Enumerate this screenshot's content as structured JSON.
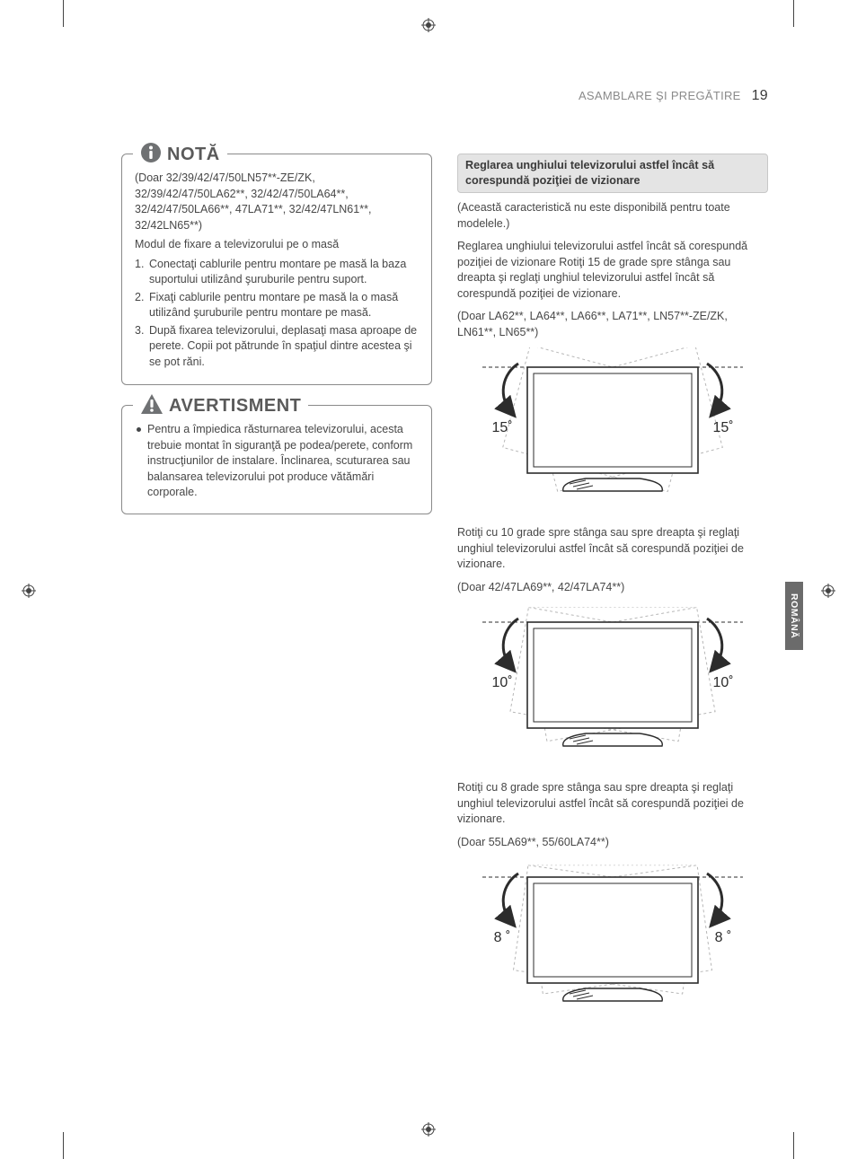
{
  "header": {
    "section": "ASAMBLARE ŞI PREGĂTIRE",
    "page": "19"
  },
  "sideTab": "ROMÂNĂ",
  "note": {
    "title": "NOTĂ",
    "models": "(Doar 32/39/42/47/50LN57**-ZE/ZK, 32/39/42/47/50LA62**, 32/42/47/50LA64**, 32/42/47/50LA66**, 47LA71**, 32/42/47LN61**, 32/42LN65**)",
    "intro": "Modul de fixare a televizorului pe o masă",
    "steps": [
      "Conectaţi cablurile pentru montare pe masă la baza suportului utilizând şuruburile pentru suport.",
      "Fixaţi cablurile pentru montare pe masă la o masă utilizând şuruburile pentru montare pe masă.",
      "După fixarea televizorului, deplasaţi masa aproape de perete. Copii pot pătrunde în spaţiul dintre acestea şi se pot răni."
    ]
  },
  "warning": {
    "title": "AVERTISMENT",
    "bullet": "Pentru a împiedica răsturnarea televizorului, acesta trebuie montat în siguranţă pe podea/perete, conform instrucţiunilor de instalare. Înclinarea, scuturarea sau balansarea televizorului pot produce vătămări corporale."
  },
  "swivel": {
    "title": "Reglarea unghiului televizorului astfel încât să corespundă poziţiei de vizionare",
    "disclaimer": "(Această caracteristică nu este disponibilă pentru toate modelele.)",
    "para15": "Reglarea unghiului televizorului astfel încât să corespundă poziţiei de vizionare Rotiţi 15 de grade spre stânga sau dreapta şi reglaţi unghiul televizorului astfel încât să corespundă poziţiei de vizionare.",
    "models15": "(Doar LA62**, LA64**, LA66**, LA71**, LN57**-ZE/ZK, LN61**, LN65**)",
    "para10": "Rotiţi cu 10 grade spre stânga sau spre dreapta şi reglaţi unghiul televizorului astfel încât să corespundă poziţiei de vizionare.",
    "models10": "(Doar 42/47LA69**, 42/47LA74**)",
    "para8": "Rotiţi cu 8 grade spre stânga sau spre dreapta şi reglaţi unghiul televizorului astfel încât să corespundă poziţiei de vizionare.",
    "models8": "(Doar 55LA69**, 55/60LA74**)"
  },
  "diagrams": {
    "d15": {
      "left": "15˚",
      "right": "15˚",
      "angle": 15
    },
    "d10": {
      "left": "10˚",
      "right": "10˚",
      "angle": 10
    },
    "d8": {
      "left": "8 ˚",
      "right": "8 ˚",
      "angle": 8
    }
  },
  "colors": {
    "text": "#474747",
    "muted": "#8a8a8a",
    "boxBorder": "#8a8a8a",
    "secBg": "#e4e4e4",
    "tab": "#6b6b6b"
  }
}
